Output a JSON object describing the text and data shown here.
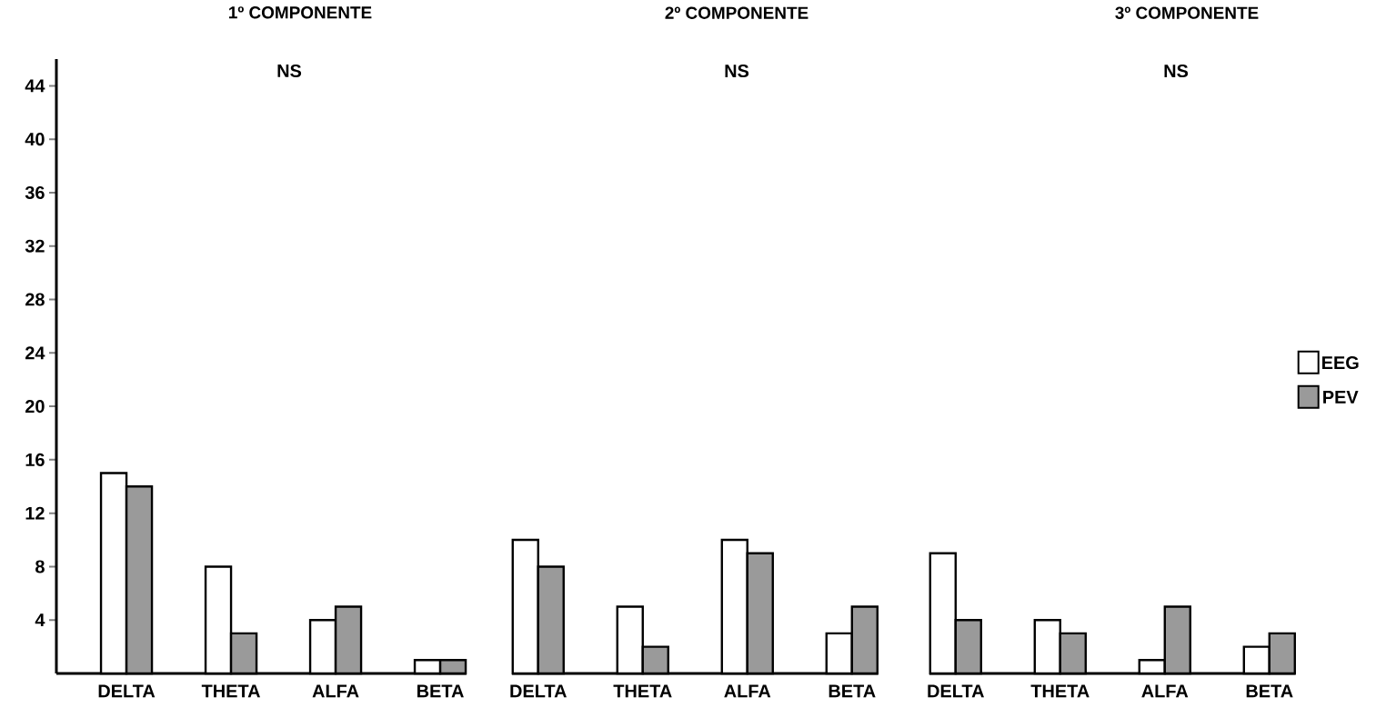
{
  "chart_data": [
    {
      "type": "bar",
      "title": "1º COMPONENTE",
      "annotations": [
        "NS"
      ],
      "categories": [
        "DELTA",
        "THETA",
        "ALFA",
        "BETA"
      ],
      "series": [
        {
          "color": "#ffffff",
          "values": [
            15,
            8,
            4,
            1
          ]
        },
        {
          "color": "#9a9a9a",
          "values": [
            14,
            3,
            5,
            1
          ]
        }
      ],
      "ylim": [
        0,
        46
      ],
      "yticks": [
        4,
        8,
        12,
        16,
        20,
        24,
        28,
        32,
        36,
        40,
        44
      ],
      "grid": false,
      "legend": false
    },
    {
      "type": "bar",
      "title": "2º COMPONENTE",
      "annotations": [
        "NS"
      ],
      "categories": [
        "DELTA",
        "THETA",
        "ALFA",
        "BETA"
      ],
      "series": [
        {
          "color": "#ffffff",
          "values": [
            10,
            5,
            10,
            3
          ]
        },
        {
          "color": "#9a9a9a",
          "values": [
            8,
            2,
            9,
            5
          ]
        }
      ],
      "ylim": [
        0,
        44
      ],
      "yticks": [
        4,
        8,
        12,
        16,
        20,
        24,
        28,
        32,
        36,
        40,
        44
      ],
      "tick_labels": "x",
      "grid": false,
      "legend": false
    },
    {
      "type": "bar",
      "title": "3º COMPONENTE",
      "annotations": [
        "NS"
      ],
      "categories": [
        "DELTA",
        "THETA",
        "ALFA",
        "BETA"
      ],
      "series": [
        {
          "name": "EEG",
          "color": "#ffffff",
          "values": [
            9,
            4,
            1,
            2
          ]
        },
        {
          "name": "PEV",
          "color": "#9a9a9a",
          "values": [
            4,
            3,
            5,
            3
          ]
        }
      ],
      "ylim": [
        0,
        44
      ],
      "yticks": [
        4,
        8,
        12,
        16,
        20,
        24,
        28,
        32,
        36,
        40,
        44
      ],
      "tick_labels": "x",
      "grid": false,
      "legend": "right"
    }
  ]
}
